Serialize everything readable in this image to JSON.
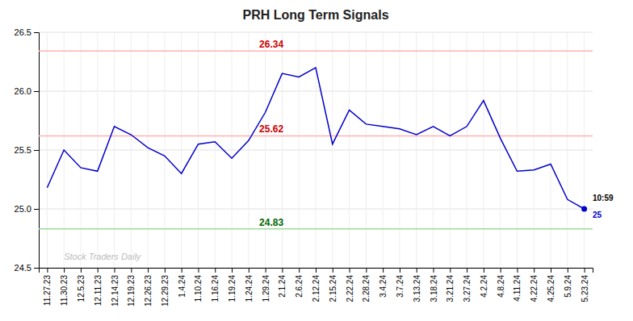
{
  "chart_data": {
    "type": "line",
    "title": "PRH Long Term Signals",
    "categories": [
      "11.27.23",
      "11.30.23",
      "12.5.23",
      "12.11.23",
      "12.14.23",
      "12.19.23",
      "12.26.23",
      "12.29.23",
      "1.4.24",
      "1.10.24",
      "1.16.24",
      "1.19.24",
      "1.24.24",
      "1.29.24",
      "2.1.24",
      "2.6.24",
      "2.12.24",
      "2.15.24",
      "2.22.24",
      "2.28.24",
      "3.4.24",
      "3.7.24",
      "3.13.24",
      "3.18.24",
      "3.21.24",
      "3.27.24",
      "4.2.24",
      "4.8.24",
      "4.11.24",
      "4.22.24",
      "4.25.24",
      "5.9.24",
      "5.23.24"
    ],
    "values": [
      25.18,
      25.5,
      25.35,
      25.32,
      25.7,
      25.63,
      25.52,
      25.45,
      25.3,
      25.55,
      25.57,
      25.43,
      25.58,
      25.82,
      26.15,
      26.12,
      26.2,
      25.55,
      25.84,
      25.72,
      25.7,
      25.68,
      25.63,
      25.7,
      25.62,
      25.7,
      25.92,
      25.6,
      25.32,
      25.33,
      25.38,
      25.08,
      25.0
    ],
    "color": "#0000cc",
    "ylim": [
      24.5,
      26.5
    ],
    "yticks": [
      24.5,
      {
        "value": 25.0,
        "label": "25.0"
      },
      25.5,
      {
        "value": 26.0,
        "label": "26.0"
      },
      26.5
    ],
    "grid": true,
    "annotations": [
      {
        "kind": "reference",
        "text": "26.34",
        "y": 26.34,
        "color": "#cc0000",
        "line_color": "#ffb3b3"
      },
      {
        "kind": "reference",
        "text": "25.62",
        "y": 25.62,
        "color": "#cc0000",
        "line_color": "#ffb3b3"
      },
      {
        "kind": "reference",
        "text": "24.83",
        "y": 24.83,
        "color": "#006600",
        "line_color": "#99dd99"
      },
      {
        "kind": "last",
        "position": "above",
        "text": "10:59",
        "color": "black"
      },
      {
        "kind": "last",
        "position": "below",
        "text": "25",
        "color": "#0000cc"
      },
      {
        "kind": "watermark",
        "text": "Stock Traders Daily",
        "color": "#bbbbbb"
      }
    ]
  }
}
